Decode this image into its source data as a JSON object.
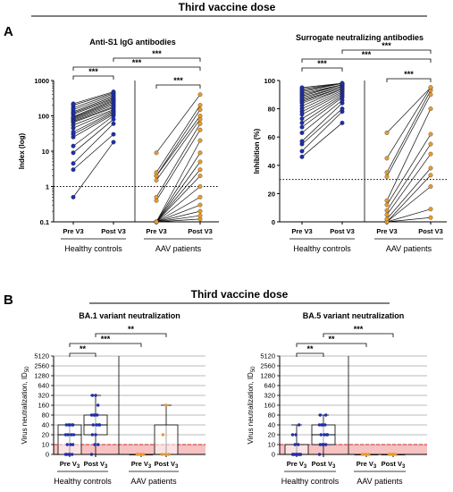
{
  "title_top": "Third vaccine dose",
  "title_bottom": "Third vaccine dose",
  "panel_labels": [
    "A",
    "B"
  ],
  "group_labels": [
    "Healthy controls",
    "AAV patients"
  ],
  "colors": {
    "hc": "#1f2fa8",
    "aav": "#e79a2c",
    "red_band": "#f6c2c2",
    "red_line": "#e02020"
  },
  "chart_data": [
    {
      "id": "A1",
      "type": "scatter",
      "title": "Anti-S1 IgG antibodies",
      "ylabel": "Index (log)",
      "scale": "log",
      "ylim": [
        0.1,
        1000
      ],
      "yticks": [
        "0.1",
        "1",
        "10",
        "100",
        "1000"
      ],
      "categories": [
        "Pre V3",
        "Post V3",
        "Pre V3",
        "Post V3"
      ],
      "threshold": 1,
      "significance": [
        "***",
        "***",
        "***",
        "***"
      ],
      "healthy_controls": {
        "pre": [
          0.5,
          3,
          4.5,
          9,
          14,
          25,
          30,
          35,
          45,
          55,
          65,
          70,
          75,
          80,
          85,
          90,
          95,
          110,
          120,
          130,
          150,
          170,
          200,
          220
        ],
        "post": [
          18,
          30,
          60,
          80,
          100,
          110,
          120,
          130,
          140,
          150,
          170,
          180,
          200,
          220,
          240,
          260,
          280,
          300,
          320,
          350,
          380,
          420,
          450,
          480
        ]
      },
      "aav_patients": {
        "pre": [
          0.1,
          0.1,
          0.1,
          0.1,
          0.1,
          0.1,
          0.1,
          0.1,
          0.1,
          0.1,
          0.1,
          0.4,
          0.5,
          1.5,
          2,
          2,
          2.5,
          9
        ],
        "post": [
          0.12,
          0.15,
          0.2,
          0.3,
          0.5,
          1,
          2,
          3,
          5,
          9,
          20,
          40,
          60,
          80,
          100,
          150,
          200,
          400
        ]
      }
    },
    {
      "id": "A2",
      "type": "scatter",
      "title": "Surrogate neutralizing antibodies",
      "ylabel": "Inhibition (%)",
      "scale": "linear",
      "ylim": [
        0,
        100
      ],
      "yticks": [
        "0",
        "20",
        "40",
        "60",
        "80",
        "100"
      ],
      "categories": [
        "Pre V3",
        "Post V3",
        "Pre V3",
        "Post V3"
      ],
      "threshold": 30,
      "significance": [
        "***",
        "***",
        "***",
        "***"
      ],
      "healthy_controls": {
        "pre": [
          46,
          50,
          55,
          57,
          63,
          67,
          70,
          73,
          76,
          78,
          80,
          82,
          84,
          85,
          86,
          87,
          88,
          89,
          90,
          91,
          92,
          93,
          94,
          95
        ],
        "post": [
          70,
          78,
          80,
          84,
          86,
          88,
          89,
          90,
          91,
          92,
          93,
          94,
          94,
          95,
          95,
          96,
          96,
          97,
          97,
          97,
          98,
          98,
          98,
          98
        ]
      },
      "aav_patients": {
        "pre": [
          0,
          0,
          0,
          0,
          2,
          5,
          8,
          12,
          15,
          32,
          35,
          45,
          63
        ],
        "post": [
          3,
          9,
          25,
          33,
          38,
          48,
          55,
          62,
          80,
          90,
          93,
          95,
          95
        ]
      }
    },
    {
      "id": "B1",
      "type": "box",
      "title": "BA.1 variant neutralization",
      "ylabel": "Virus neutralization, ID",
      "ylabel_sub": "50",
      "yticks": [
        "0",
        "10",
        "20",
        "40",
        "80",
        "160",
        "320",
        "640",
        "1280",
        "2560",
        "5120"
      ],
      "category_main": [
        "Pre V",
        "Post V",
        "Pre V",
        "Post V"
      ],
      "category_sub": "3",
      "threshold": 10,
      "significance": [
        "**",
        "***",
        "**"
      ],
      "boxes": [
        {
          "min": 0,
          "q1": 0,
          "median": 20,
          "q3": 40,
          "max": 40,
          "points": [
            0,
            0,
            0,
            0,
            0,
            10,
            10,
            10,
            20,
            20,
            20,
            20,
            40,
            40,
            40,
            40,
            40
          ]
        },
        {
          "min": 0,
          "q1": 20,
          "median": 40,
          "q3": 80,
          "max": 320,
          "points": [
            0,
            10,
            10,
            20,
            20,
            40,
            40,
            40,
            40,
            80,
            80,
            80,
            80,
            160,
            320,
            320
          ]
        },
        {
          "min": 0,
          "q1": 0,
          "median": 0,
          "q3": 0,
          "max": 0,
          "points": [
            0,
            0,
            0,
            0,
            0
          ]
        },
        {
          "min": 0,
          "q1": 0,
          "median": 0,
          "q3": 40,
          "max": 160,
          "points": [
            0,
            0,
            0,
            20,
            160
          ]
        }
      ]
    },
    {
      "id": "B2",
      "type": "box",
      "title": "BA.5 variant neutralization",
      "ylabel": "Virus neutralization, ID",
      "ylabel_sub": "50",
      "yticks": [
        "0",
        "10",
        "20",
        "40",
        "80",
        "160",
        "320",
        "640",
        "1280",
        "2560",
        "5120"
      ],
      "category_main": [
        "Pre V",
        "Post V",
        "Pre V",
        "Post V"
      ],
      "category_sub": "3",
      "threshold": 10,
      "significance": [
        "**",
        "**",
        "***"
      ],
      "boxes": [
        {
          "min": 0,
          "q1": 0,
          "median": 0,
          "q3": 10,
          "max": 40,
          "points": [
            0,
            0,
            0,
            0,
            0,
            0,
            0,
            0,
            0,
            10,
            10,
            20,
            20,
            40
          ]
        },
        {
          "min": 0,
          "q1": 10,
          "median": 20,
          "q3": 40,
          "max": 80,
          "points": [
            0,
            10,
            10,
            10,
            10,
            20,
            20,
            20,
            20,
            40,
            40,
            40,
            40,
            80,
            80
          ]
        },
        {
          "min": 0,
          "q1": 0,
          "median": 0,
          "q3": 0,
          "max": 0,
          "points": [
            0,
            0,
            0,
            0,
            0
          ]
        },
        {
          "min": 0,
          "q1": 0,
          "median": 0,
          "q3": 0,
          "max": 0,
          "points": [
            0,
            0,
            0,
            0,
            0
          ]
        }
      ]
    }
  ]
}
